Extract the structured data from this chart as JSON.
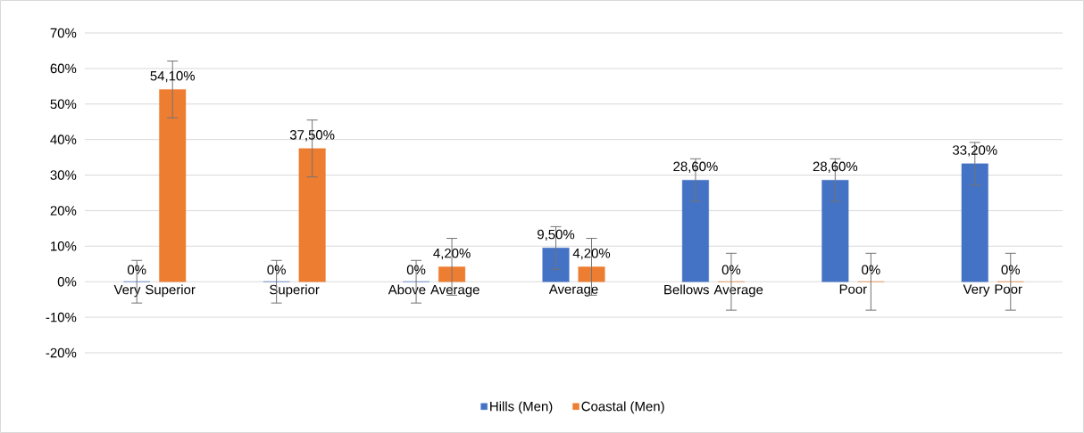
{
  "chart_data": {
    "type": "bar",
    "categories": [
      "Very Superior",
      "Superior",
      "Above Average",
      "Average",
      "Bellows Average",
      "Poor",
      "Very Poor"
    ],
    "series": [
      {
        "name": "Hills (Men)",
        "color": "#4472c4",
        "values": [
          0,
          0,
          0,
          9.5,
          28.6,
          28.6,
          33.2
        ],
        "errors": [
          6,
          6,
          6,
          6,
          6,
          6,
          6
        ],
        "value_labels": [
          "0%",
          "0%",
          "0%",
          "9,50%",
          "28,60%",
          "28,60%",
          "33,20%"
        ]
      },
      {
        "name": "Coastal (Men)",
        "color": "#ed7d31",
        "values": [
          54.1,
          37.5,
          4.2,
          4.2,
          0,
          0,
          0
        ],
        "errors": [
          8,
          8,
          8,
          8,
          8,
          8,
          8
        ],
        "value_labels": [
          "54,10%",
          "37,50%",
          "4,20%",
          "4,20%",
          "0%",
          "0%",
          "0%"
        ]
      }
    ],
    "ylim": [
      -20,
      70
    ],
    "yticks": [
      {
        "value": -20,
        "label": "-20%"
      },
      {
        "value": -10,
        "label": "-10%"
      },
      {
        "value": 0,
        "label": "0%"
      },
      {
        "value": 10,
        "label": "10%"
      },
      {
        "value": 20,
        "label": "20%"
      },
      {
        "value": 30,
        "label": "30%"
      },
      {
        "value": 40,
        "label": "40%"
      },
      {
        "value": 50,
        "label": "50%"
      },
      {
        "value": 60,
        "label": "60%"
      },
      {
        "value": 70,
        "label": "70%"
      }
    ],
    "grid": "y",
    "legend": "bottom"
  }
}
